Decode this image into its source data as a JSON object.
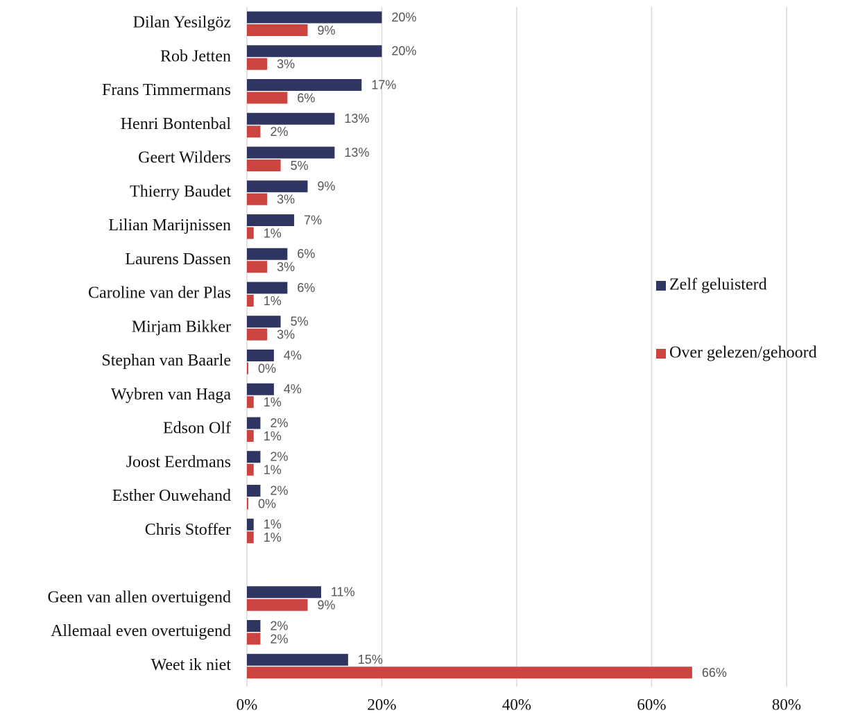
{
  "chart_data": {
    "type": "bar",
    "orientation": "horizontal",
    "categories": [
      "Dilan Yesilgöz",
      "Rob Jetten",
      "Frans Timmermans",
      "Henri Bontenbal",
      "Geert Wilders",
      "Thierry Baudet",
      "Lilian Marijnissen",
      "Laurens Dassen",
      "Caroline van der Plas",
      "Mirjam Bikker",
      "Stephan van Baarle",
      "Wybren van Haga",
      "Edson Olf",
      "Joost Eerdmans",
      "Esther Ouwehand",
      "Chris Stoffer",
      null,
      "Geen van allen overtuigend",
      "Allemaal even overtuigend",
      "Weet ik niet"
    ],
    "series": [
      {
        "name": "Zelf geluisterd",
        "color": "#2e3561",
        "values": [
          20,
          20,
          17,
          13,
          13,
          9,
          7,
          6,
          6,
          5,
          4,
          4,
          2,
          2,
          2,
          1,
          null,
          11,
          2,
          15
        ],
        "value_labels": [
          "20%",
          "20%",
          "17%",
          "13%",
          "13%",
          "9%",
          "7%",
          "6%",
          "6%",
          "5%",
          "4%",
          "4%",
          "2%",
          "2%",
          "2%",
          "1%",
          null,
          "11%",
          "2%",
          "15%"
        ]
      },
      {
        "name": "Over gelezen/gehoord",
        "color": "#cc4440",
        "values": [
          9,
          3,
          6,
          2,
          5,
          3,
          1,
          3,
          1,
          3,
          0,
          1,
          1,
          1,
          0,
          1,
          null,
          9,
          2,
          66
        ],
        "value_labels": [
          "9%",
          "3%",
          "6%",
          "2%",
          "5%",
          "3%",
          "1%",
          "3%",
          "1%",
          "3%",
          "0%",
          "1%",
          "1%",
          "1%",
          "0%",
          "1%",
          null,
          "9%",
          "2%",
          "66%"
        ]
      }
    ],
    "xlim": [
      0,
      80
    ],
    "xticks": [
      {
        "value": 0,
        "label": "0%"
      },
      {
        "value": 20,
        "label": "20%"
      },
      {
        "value": 40,
        "label": "40%"
      },
      {
        "value": 60,
        "label": "60%"
      },
      {
        "value": 80,
        "label": "80%"
      }
    ],
    "grid": true,
    "legend": "right"
  }
}
